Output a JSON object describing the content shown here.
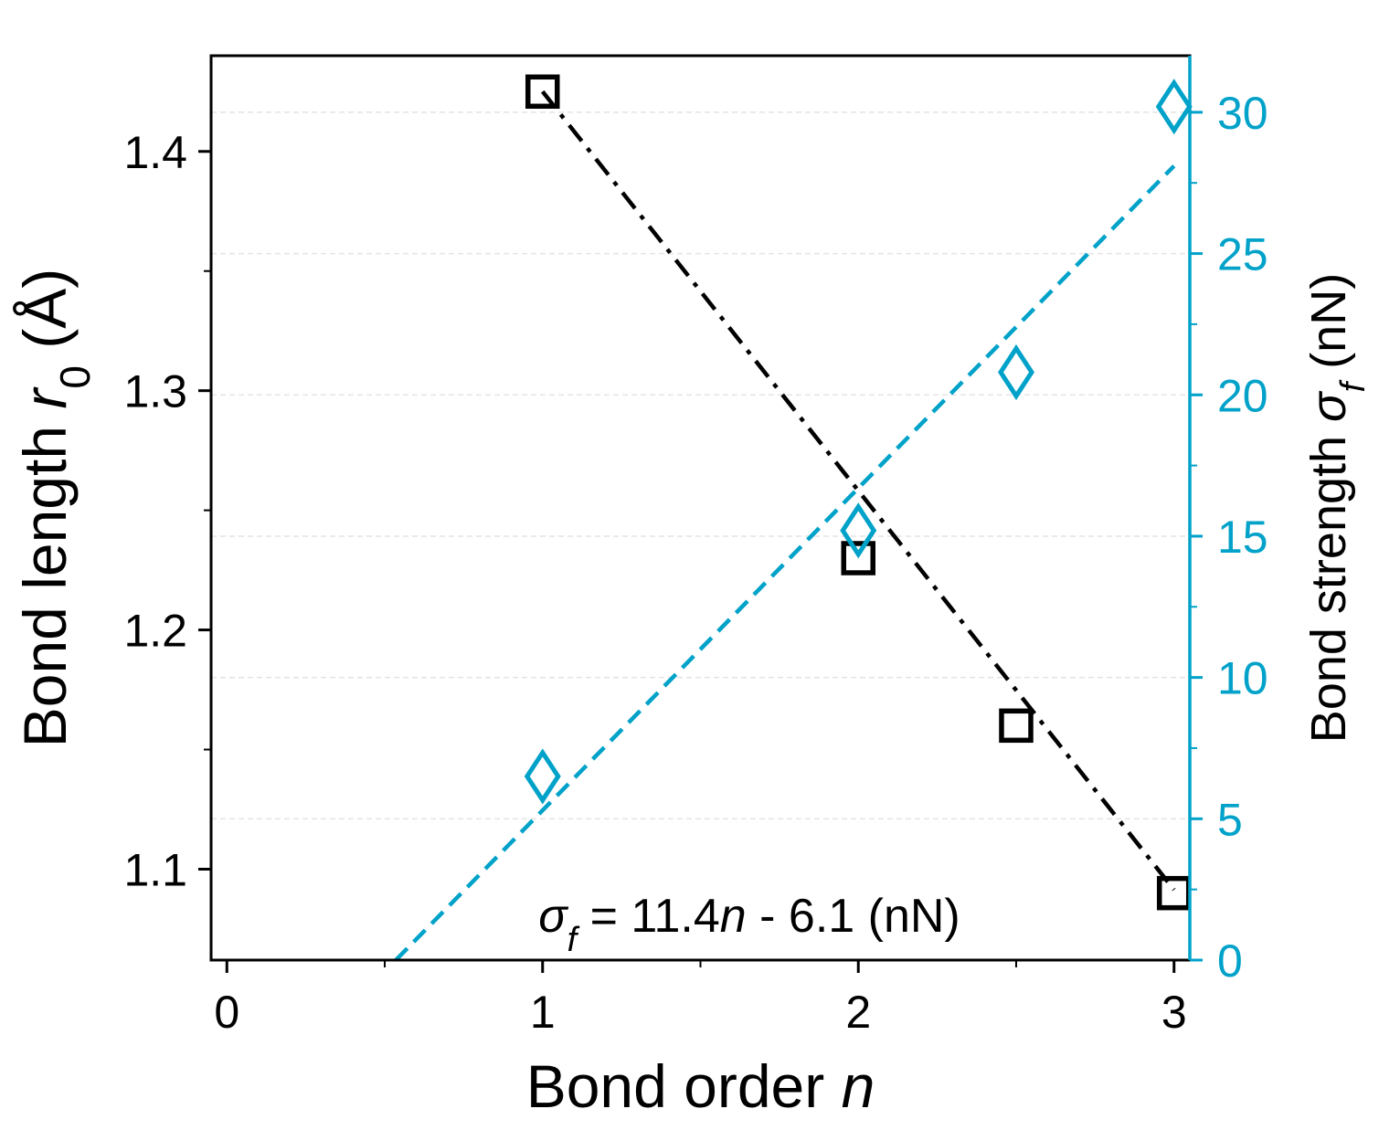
{
  "chart_data": {
    "type": "scatter",
    "x_axis": {
      "label_parts": [
        {
          "text": "Bond order ",
          "italic": false,
          "sub": false
        },
        {
          "text": "n",
          "italic": true,
          "sub": false
        }
      ],
      "range": [
        -0.05,
        3.05
      ],
      "ticks": [
        0,
        1,
        2,
        3
      ],
      "tick_labels": [
        "0",
        "1",
        "2",
        "3"
      ]
    },
    "y_left": {
      "label_parts": [
        {
          "text": "Bond length ",
          "italic": false,
          "sub": false
        },
        {
          "text": "r",
          "italic": true,
          "sub": false
        },
        {
          "text": "0",
          "italic": false,
          "sub": true
        },
        {
          "text": " (Å)",
          "italic": false,
          "sub": false
        }
      ],
      "range": [
        1.062,
        1.44
      ],
      "ticks": [
        1.1,
        1.2,
        1.3,
        1.4
      ],
      "tick_labels": [
        "1.1",
        "1.2",
        "1.3",
        "1.4"
      ],
      "color": "#000000"
    },
    "y_right": {
      "label_parts": [
        {
          "text": "Bond strength ",
          "italic": false,
          "sub": false
        },
        {
          "text": "σ",
          "italic": true,
          "sub": false
        },
        {
          "text": "f",
          "italic": true,
          "sub": true
        },
        {
          "text": " (nN)",
          "italic": false,
          "sub": false
        }
      ],
      "range": [
        0,
        32
      ],
      "ticks": [
        0,
        5,
        10,
        15,
        20,
        25,
        30
      ],
      "tick_labels": [
        "0",
        "5",
        "10",
        "15",
        "20",
        "25",
        "30"
      ],
      "color": "#00a2c9"
    },
    "grid": true,
    "series": [
      {
        "axis": "left",
        "marker": "square",
        "color": "#000000",
        "x": [
          1,
          2,
          2.5,
          3
        ],
        "y": [
          1.425,
          1.23,
          1.16,
          1.09
        ]
      },
      {
        "axis": "right",
        "marker": "diamond",
        "color": "#00a2c9",
        "x": [
          1,
          2,
          2.5,
          3
        ],
        "y": [
          6.5,
          15.2,
          20.8,
          30.2
        ]
      }
    ],
    "fits": [
      {
        "axis": "left",
        "style": "dash-dot",
        "color": "#000000",
        "slope": -0.1668,
        "intercept": 1.5918,
        "x_range": [
          1,
          3
        ]
      },
      {
        "axis": "right",
        "style": "dashed",
        "color": "#00a2c9",
        "slope": 11.4,
        "intercept": -6.1,
        "x_range": [
          0.535,
          3
        ]
      }
    ],
    "annotation": {
      "parts": [
        {
          "text": "σ",
          "italic": true,
          "sub": false
        },
        {
          "text": "f",
          "italic": true,
          "sub": true
        },
        {
          "text": " = 11.4",
          "italic": false,
          "sub": false
        },
        {
          "text": "n",
          "italic": true,
          "sub": false
        },
        {
          "text": " - 6.1 (nN)",
          "italic": false,
          "sub": false
        }
      ],
      "position": "bottom-center"
    }
  }
}
